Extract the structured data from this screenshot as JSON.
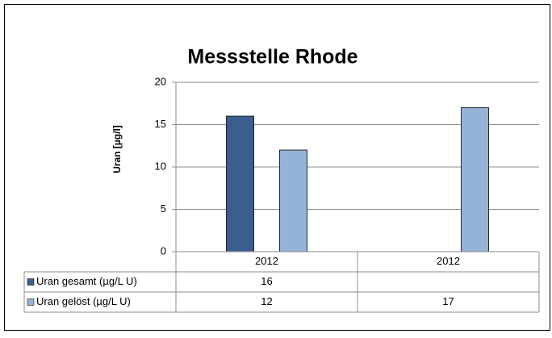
{
  "chart_data": {
    "type": "bar",
    "title": "Messstelle Rhode",
    "y_label": "Uran [µg/l]",
    "categories": [
      "2012",
      "2012"
    ],
    "series": [
      {
        "name": "Uran gesamt (µg/L U)",
        "color": "#3a5f8f",
        "values": [
          16,
          null
        ]
      },
      {
        "name": "Uran gelöst (µg/L U)",
        "color": "#95b3d7",
        "values": [
          12,
          17
        ]
      }
    ],
    "ylim": [
      0,
      20
    ],
    "yticks": [
      0,
      5,
      10,
      15,
      20
    ],
    "grid": true,
    "data_table": true
  }
}
